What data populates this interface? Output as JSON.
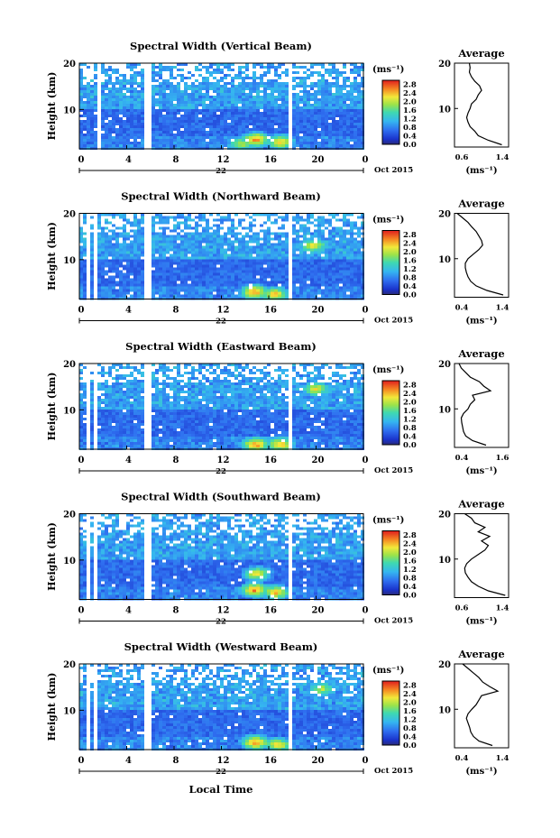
{
  "figure": {
    "xlabel": "Local Time",
    "day_label": "22",
    "month_label": "Oct 2015",
    "ylabel": "Height (km)",
    "unit_label": "(ms⁻¹)",
    "average_title": "Average",
    "average_xlabel": "(ms⁻¹)"
  },
  "chart_data": [
    {
      "type": "heatmap",
      "title": "Spectral Width (Vertical Beam)",
      "xlabel": "Local Time",
      "ylabel": "Height (km)",
      "xlim": [
        0,
        24
      ],
      "ylim": [
        1.5,
        20
      ],
      "x_ticks": [
        "0",
        "4",
        "8",
        "12",
        "16",
        "20",
        "0"
      ],
      "y_ticks": [
        "10",
        "20"
      ],
      "colorbar": {
        "label": "(ms⁻¹)",
        "range": [
          0,
          3.0
        ],
        "ticks": [
          "0.0",
          "0.4",
          "0.8",
          "1.2",
          "1.6",
          "2.0",
          "2.4",
          "2.8"
        ]
      },
      "gaps_hours": [
        [
          0.8,
          1.0
        ],
        [
          1.6,
          1.8
        ],
        [
          5.6,
          6.0
        ],
        [
          17.6,
          17.9
        ]
      ],
      "hotspots": [
        {
          "hour": 14.9,
          "height_km": 3.5,
          "width_ms": 2.6
        },
        {
          "hour": 17.0,
          "height_km": 3.0,
          "width_ms": 2.4
        },
        {
          "hour": 13.7,
          "height_km": 2.5,
          "width_ms": 2.0
        }
      ],
      "average": {
        "xlim": [
          0.6,
          1.4
        ],
        "x_ticks": [
          "0.6",
          "1.4"
        ],
        "y_ticks": [
          "10",
          "20"
        ],
        "profile": [
          [
            1.3,
            2
          ],
          [
            1.1,
            3
          ],
          [
            0.95,
            4
          ],
          [
            0.9,
            5
          ],
          [
            0.83,
            6
          ],
          [
            0.8,
            7
          ],
          [
            0.78,
            8
          ],
          [
            0.8,
            9
          ],
          [
            0.83,
            10
          ],
          [
            0.85,
            11
          ],
          [
            0.92,
            12
          ],
          [
            0.95,
            13
          ],
          [
            1.0,
            14
          ],
          [
            0.97,
            15
          ],
          [
            0.9,
            16
          ],
          [
            0.85,
            17
          ],
          [
            0.82,
            18
          ],
          [
            0.83,
            19
          ],
          [
            0.82,
            20
          ]
        ]
      }
    },
    {
      "type": "heatmap",
      "title": "Spectral Width (Northward Beam)",
      "xlabel": "Local Time",
      "ylabel": "Height (km)",
      "xlim": [
        0,
        24
      ],
      "ylim": [
        1.5,
        20
      ],
      "x_ticks": [
        "0",
        "4",
        "8",
        "12",
        "16",
        "20",
        "0"
      ],
      "y_ticks": [
        "10",
        "20"
      ],
      "colorbar": {
        "label": "(ms⁻¹)",
        "range": [
          0,
          3.0
        ],
        "ticks": [
          "0.0",
          "0.4",
          "0.8",
          "1.2",
          "1.6",
          "2.0",
          "2.4",
          "2.8"
        ]
      },
      "gaps_hours": [
        [
          0.5,
          0.8
        ],
        [
          1.2,
          1.5
        ],
        [
          5.6,
          6.0
        ],
        [
          17.6,
          17.9
        ]
      ],
      "hotspots": [
        {
          "hour": 14.8,
          "height_km": 3.0,
          "width_ms": 2.6
        },
        {
          "hour": 16.5,
          "height_km": 2.5,
          "width_ms": 2.4
        },
        {
          "hour": 19.8,
          "height_km": 13.0,
          "width_ms": 2.2
        }
      ],
      "average": {
        "xlim": [
          0.4,
          1.4
        ],
        "x_ticks": [
          "0.4",
          "1.4"
        ],
        "y_ticks": [
          "10",
          "20"
        ],
        "profile": [
          [
            1.3,
            2
          ],
          [
            1.0,
            3
          ],
          [
            0.8,
            4
          ],
          [
            0.7,
            5
          ],
          [
            0.65,
            6
          ],
          [
            0.62,
            7
          ],
          [
            0.6,
            8
          ],
          [
            0.6,
            9
          ],
          [
            0.65,
            10
          ],
          [
            0.75,
            11
          ],
          [
            0.85,
            12
          ],
          [
            0.92,
            13
          ],
          [
            0.9,
            14
          ],
          [
            0.85,
            15
          ],
          [
            0.8,
            16
          ],
          [
            0.72,
            17
          ],
          [
            0.65,
            18
          ],
          [
            0.55,
            19
          ],
          [
            0.45,
            20
          ]
        ]
      }
    },
    {
      "type": "heatmap",
      "title": "Spectral Width (Eastward Beam)",
      "xlabel": "Local Time",
      "ylabel": "Height (km)",
      "xlim": [
        0,
        24
      ],
      "ylim": [
        1.5,
        20
      ],
      "x_ticks": [
        "0",
        "4",
        "8",
        "12",
        "16",
        "20",
        "0"
      ],
      "y_ticks": [
        "10",
        "20"
      ],
      "colorbar": {
        "label": "(ms⁻¹)",
        "range": [
          0,
          3.0
        ],
        "ticks": [
          "0.0",
          "0.4",
          "0.8",
          "1.2",
          "1.6",
          "2.0",
          "2.4",
          "2.8"
        ]
      },
      "gaps_hours": [
        [
          0.6,
          0.9
        ],
        [
          1.2,
          1.5
        ],
        [
          5.6,
          6.0
        ],
        [
          17.6,
          17.9
        ]
      ],
      "hotspots": [
        {
          "hour": 14.9,
          "height_km": 2.5,
          "width_ms": 2.6
        },
        {
          "hour": 17.0,
          "height_km": 2.5,
          "width_ms": 2.4
        },
        {
          "hour": 20.0,
          "height_km": 14.5,
          "width_ms": 2.2
        }
      ],
      "average": {
        "xlim": [
          0.4,
          1.6
        ],
        "x_ticks": [
          "0.4",
          "1.6"
        ],
        "y_ticks": [
          "10",
          "20"
        ],
        "profile": [
          [
            1.1,
            2
          ],
          [
            0.8,
            3
          ],
          [
            0.65,
            4
          ],
          [
            0.6,
            5
          ],
          [
            0.58,
            6
          ],
          [
            0.56,
            7
          ],
          [
            0.55,
            8
          ],
          [
            0.6,
            9
          ],
          [
            0.7,
            10
          ],
          [
            0.75,
            11
          ],
          [
            0.85,
            12
          ],
          [
            0.8,
            13
          ],
          [
            1.2,
            14
          ],
          [
            1.05,
            15
          ],
          [
            0.95,
            16
          ],
          [
            0.75,
            17
          ],
          [
            0.65,
            18
          ],
          [
            0.55,
            19
          ],
          [
            0.5,
            20
          ]
        ]
      }
    },
    {
      "type": "heatmap",
      "title": "Spectral Width (Southward Beam)",
      "xlabel": "Local Time",
      "ylabel": "Height (km)",
      "xlim": [
        0,
        24
      ],
      "ylim": [
        1.5,
        20
      ],
      "x_ticks": [
        "0",
        "4",
        "8",
        "12",
        "16",
        "20",
        "0"
      ],
      "y_ticks": [
        "10",
        "20"
      ],
      "colorbar": {
        "label": "(ms⁻¹)",
        "range": [
          0,
          3.0
        ],
        "ticks": [
          "0.0",
          "0.4",
          "0.8",
          "1.2",
          "1.6",
          "2.0",
          "2.4",
          "2.8"
        ]
      },
      "gaps_hours": [
        [
          0.6,
          0.9
        ],
        [
          1.2,
          1.5
        ],
        [
          5.6,
          6.0
        ],
        [
          17.6,
          17.9
        ]
      ],
      "hotspots": [
        {
          "hour": 14.8,
          "height_km": 3.5,
          "width_ms": 2.6
        },
        {
          "hour": 16.6,
          "height_km": 3.0,
          "width_ms": 2.4
        },
        {
          "hour": 15.0,
          "height_km": 7.0,
          "width_ms": 2.2
        }
      ],
      "average": {
        "xlim": [
          0.6,
          1.4
        ],
        "x_ticks": [
          "0.6",
          "1.4"
        ],
        "y_ticks": [
          "10",
          "20"
        ],
        "profile": [
          [
            1.35,
            2
          ],
          [
            1.1,
            3
          ],
          [
            0.95,
            4
          ],
          [
            0.85,
            5
          ],
          [
            0.8,
            6
          ],
          [
            0.76,
            7
          ],
          [
            0.75,
            8
          ],
          [
            0.78,
            9
          ],
          [
            0.85,
            10
          ],
          [
            0.95,
            11
          ],
          [
            1.05,
            12
          ],
          [
            1.1,
            13
          ],
          [
            1.0,
            14
          ],
          [
            1.12,
            15
          ],
          [
            0.95,
            16
          ],
          [
            1.05,
            17
          ],
          [
            0.9,
            18
          ],
          [
            0.85,
            19
          ],
          [
            0.75,
            20
          ]
        ]
      }
    },
    {
      "type": "heatmap",
      "title": "Spectral Width (Westward Beam)",
      "xlabel": "Local Time",
      "ylabel": "Height (km)",
      "xlim": [
        0,
        24
      ],
      "ylim": [
        1.5,
        20
      ],
      "x_ticks": [
        "0",
        "4",
        "8",
        "12",
        "16",
        "20",
        "0"
      ],
      "y_ticks": [
        "10",
        "20"
      ],
      "colorbar": {
        "label": "(ms⁻¹)",
        "range": [
          0,
          3.0
        ],
        "ticks": [
          "0.0",
          "0.4",
          "0.8",
          "1.2",
          "1.6",
          "2.0",
          "2.4",
          "2.8"
        ]
      },
      "gaps_hours": [
        [
          0.6,
          0.9
        ],
        [
          1.2,
          1.5
        ],
        [
          5.6,
          6.0
        ],
        [
          17.6,
          17.9
        ]
      ],
      "hotspots": [
        {
          "hour": 14.9,
          "height_km": 3.0,
          "width_ms": 2.6
        },
        {
          "hour": 16.8,
          "height_km": 2.5,
          "width_ms": 2.3
        },
        {
          "hour": 20.5,
          "height_km": 14.5,
          "width_ms": 2.0
        }
      ],
      "average": {
        "xlim": [
          0.4,
          1.4
        ],
        "x_ticks": [
          "0.4",
          "1.4"
        ],
        "y_ticks": [
          "10",
          "20"
        ],
        "profile": [
          [
            1.1,
            2
          ],
          [
            0.85,
            3
          ],
          [
            0.75,
            4
          ],
          [
            0.7,
            5
          ],
          [
            0.68,
            6
          ],
          [
            0.65,
            7
          ],
          [
            0.62,
            8
          ],
          [
            0.65,
            9
          ],
          [
            0.72,
            10
          ],
          [
            0.8,
            11
          ],
          [
            0.85,
            12
          ],
          [
            0.9,
            13
          ],
          [
            1.2,
            14
          ],
          [
            1.05,
            15
          ],
          [
            0.92,
            16
          ],
          [
            0.85,
            17
          ],
          [
            0.75,
            18
          ],
          [
            0.65,
            19
          ],
          [
            0.55,
            20
          ]
        ]
      }
    }
  ]
}
